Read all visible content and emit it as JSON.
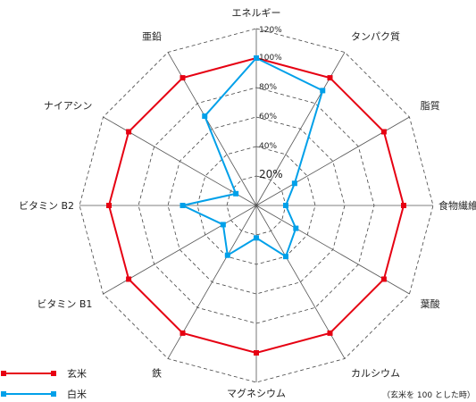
{
  "chart_data": {
    "type": "radar",
    "axes": [
      "エネルギー",
      "タンパク質",
      "脂質",
      "食物繊維",
      "葉酸",
      "カルシウム",
      "マグネシウム",
      "鉄",
      "ビタミン B1",
      "ビタミン B2",
      "ナイアシン",
      "亜鉛"
    ],
    "ticks": [
      "20%",
      "40%",
      "60%",
      "80%",
      "100%",
      "120%"
    ],
    "tick_values": [
      20,
      40,
      60,
      80,
      100,
      120
    ],
    "rmax": 120,
    "series": [
      {
        "name": "玄米",
        "color": "#e60012",
        "values": [
          100,
          100,
          100,
          100,
          100,
          100,
          100,
          100,
          100,
          100,
          100,
          100
        ]
      },
      {
        "name": "白米",
        "color": "#00a0e9",
        "values": [
          100,
          90,
          30,
          20,
          31,
          40,
          22,
          39,
          26,
          50,
          16,
          70
        ]
      }
    ],
    "note": "（玄米を 100 とした時）"
  }
}
